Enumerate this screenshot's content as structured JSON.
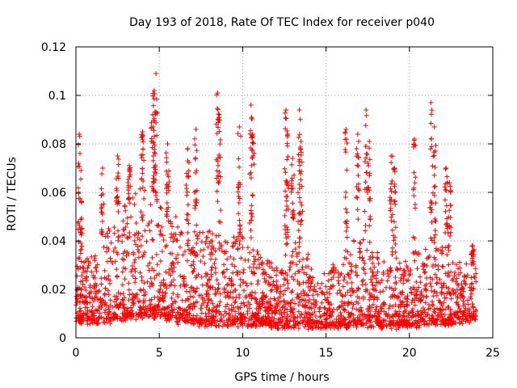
{
  "chart_data": {
    "type": "scatter",
    "title": "Day 193 of 2018, Rate Of TEC Index for receiver p040",
    "xlabel": "GPS time / hours",
    "ylabel": "ROTI / TECUs",
    "xlim": [
      0,
      25
    ],
    "ylim": [
      0,
      0.12
    ],
    "xticks": [
      "0",
      "5",
      "10",
      "15",
      "20",
      "25"
    ],
    "yticks": [
      "0",
      "0.02",
      "0.04",
      "0.06",
      "0.08",
      "0.1",
      "0.12"
    ],
    "grid": true,
    "marker": "+",
    "marker_color": "#ff0000",
    "data_span_hours": [
      0,
      24
    ],
    "baseline_band": [
      0.005,
      0.025
    ],
    "notable_peaks": [
      {
        "x": 0.2,
        "y": 0.084
      },
      {
        "x": 0.3,
        "y": 0.069
      },
      {
        "x": 1.6,
        "y": 0.07
      },
      {
        "x": 2.5,
        "y": 0.075
      },
      {
        "x": 3.2,
        "y": 0.071
      },
      {
        "x": 4.0,
        "y": 0.085
      },
      {
        "x": 4.6,
        "y": 0.092
      },
      {
        "x": 4.8,
        "y": 0.109
      },
      {
        "x": 4.7,
        "y": 0.102
      },
      {
        "x": 5.5,
        "y": 0.08
      },
      {
        "x": 6.7,
        "y": 0.078
      },
      {
        "x": 7.2,
        "y": 0.086
      },
      {
        "x": 8.5,
        "y": 0.101
      },
      {
        "x": 8.6,
        "y": 0.092
      },
      {
        "x": 9.8,
        "y": 0.087
      },
      {
        "x": 10.5,
        "y": 0.096
      },
      {
        "x": 10.6,
        "y": 0.084
      },
      {
        "x": 12.6,
        "y": 0.094
      },
      {
        "x": 12.7,
        "y": 0.084
      },
      {
        "x": 13.0,
        "y": 0.074
      },
      {
        "x": 13.4,
        "y": 0.094
      },
      {
        "x": 13.5,
        "y": 0.081
      },
      {
        "x": 16.2,
        "y": 0.086
      },
      {
        "x": 16.9,
        "y": 0.084
      },
      {
        "x": 17.4,
        "y": 0.094
      },
      {
        "x": 17.6,
        "y": 0.081
      },
      {
        "x": 18.9,
        "y": 0.075
      },
      {
        "x": 19.1,
        "y": 0.07
      },
      {
        "x": 20.3,
        "y": 0.082
      },
      {
        "x": 21.3,
        "y": 0.097
      },
      {
        "x": 21.5,
        "y": 0.087
      },
      {
        "x": 22.2,
        "y": 0.07
      },
      {
        "x": 22.4,
        "y": 0.064
      },
      {
        "x": 23.8,
        "y": 0.038
      }
    ],
    "activity_profile": [
      {
        "x": 0,
        "low": 0.007,
        "high": 0.03
      },
      {
        "x": 1,
        "low": 0.007,
        "high": 0.035
      },
      {
        "x": 2,
        "low": 0.007,
        "high": 0.045
      },
      {
        "x": 3,
        "low": 0.008,
        "high": 0.055
      },
      {
        "x": 4,
        "low": 0.009,
        "high": 0.065
      },
      {
        "x": 5,
        "low": 0.009,
        "high": 0.055
      },
      {
        "x": 6,
        "low": 0.007,
        "high": 0.05
      },
      {
        "x": 7,
        "low": 0.006,
        "high": 0.045
      },
      {
        "x": 8,
        "low": 0.006,
        "high": 0.045
      },
      {
        "x": 9,
        "low": 0.006,
        "high": 0.04
      },
      {
        "x": 10,
        "low": 0.006,
        "high": 0.045
      },
      {
        "x": 11,
        "low": 0.006,
        "high": 0.035
      },
      {
        "x": 12,
        "low": 0.005,
        "high": 0.03
      },
      {
        "x": 13,
        "low": 0.005,
        "high": 0.045
      },
      {
        "x": 14,
        "low": 0.005,
        "high": 0.035
      },
      {
        "x": 15,
        "low": 0.005,
        "high": 0.025
      },
      {
        "x": 16,
        "low": 0.005,
        "high": 0.035
      },
      {
        "x": 17,
        "low": 0.006,
        "high": 0.045
      },
      {
        "x": 18,
        "low": 0.005,
        "high": 0.035
      },
      {
        "x": 19,
        "low": 0.005,
        "high": 0.035
      },
      {
        "x": 20,
        "low": 0.005,
        "high": 0.03
      },
      {
        "x": 21,
        "low": 0.006,
        "high": 0.04
      },
      {
        "x": 22,
        "low": 0.006,
        "high": 0.04
      },
      {
        "x": 23,
        "low": 0.007,
        "high": 0.03
      },
      {
        "x": 24,
        "low": 0.008,
        "high": 0.028
      }
    ]
  }
}
